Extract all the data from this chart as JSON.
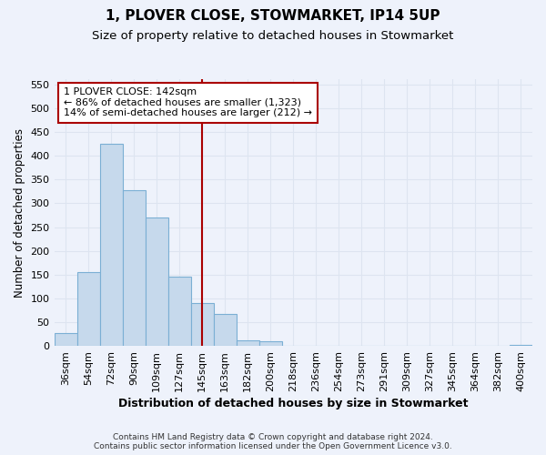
{
  "title_line1": "1, PLOVER CLOSE, STOWMARKET, IP14 5UP",
  "title_line2": "Size of property relative to detached houses in Stowmarket",
  "xlabel": "Distribution of detached houses by size in Stowmarket",
  "ylabel": "Number of detached properties",
  "categories": [
    "36sqm",
    "54sqm",
    "72sqm",
    "90sqm",
    "109sqm",
    "127sqm",
    "145sqm",
    "163sqm",
    "182sqm",
    "200sqm",
    "218sqm",
    "236sqm",
    "254sqm",
    "273sqm",
    "291sqm",
    "309sqm",
    "327sqm",
    "345sqm",
    "364sqm",
    "382sqm",
    "400sqm"
  ],
  "values": [
    27,
    155,
    425,
    327,
    270,
    145,
    90,
    68,
    12,
    10,
    0,
    0,
    0,
    0,
    0,
    0,
    0,
    0,
    0,
    0,
    3
  ],
  "bar_color": "#c6d9ec",
  "bar_edge_color": "#7bafd4",
  "vline_x_index": 6,
  "vline_color": "#aa0000",
  "annotation_text": "1 PLOVER CLOSE: 142sqm\n← 86% of detached houses are smaller (1,323)\n14% of semi-detached houses are larger (212) →",
  "annotation_box_facecolor": "#ffffff",
  "annotation_box_edgecolor": "#aa0000",
  "ylim": [
    0,
    560
  ],
  "yticks": [
    0,
    50,
    100,
    150,
    200,
    250,
    300,
    350,
    400,
    450,
    500,
    550
  ],
  "footer_line1": "Contains HM Land Registry data © Crown copyright and database right 2024.",
  "footer_line2": "Contains public sector information licensed under the Open Government Licence v3.0.",
  "bg_color": "#eef2fb",
  "grid_color": "#dde4f0",
  "title_fontsize": 11,
  "subtitle_fontsize": 9.5,
  "tick_fontsize": 8,
  "ylabel_fontsize": 8.5,
  "xlabel_fontsize": 9,
  "annotation_fontsize": 8,
  "footer_fontsize": 6.5
}
